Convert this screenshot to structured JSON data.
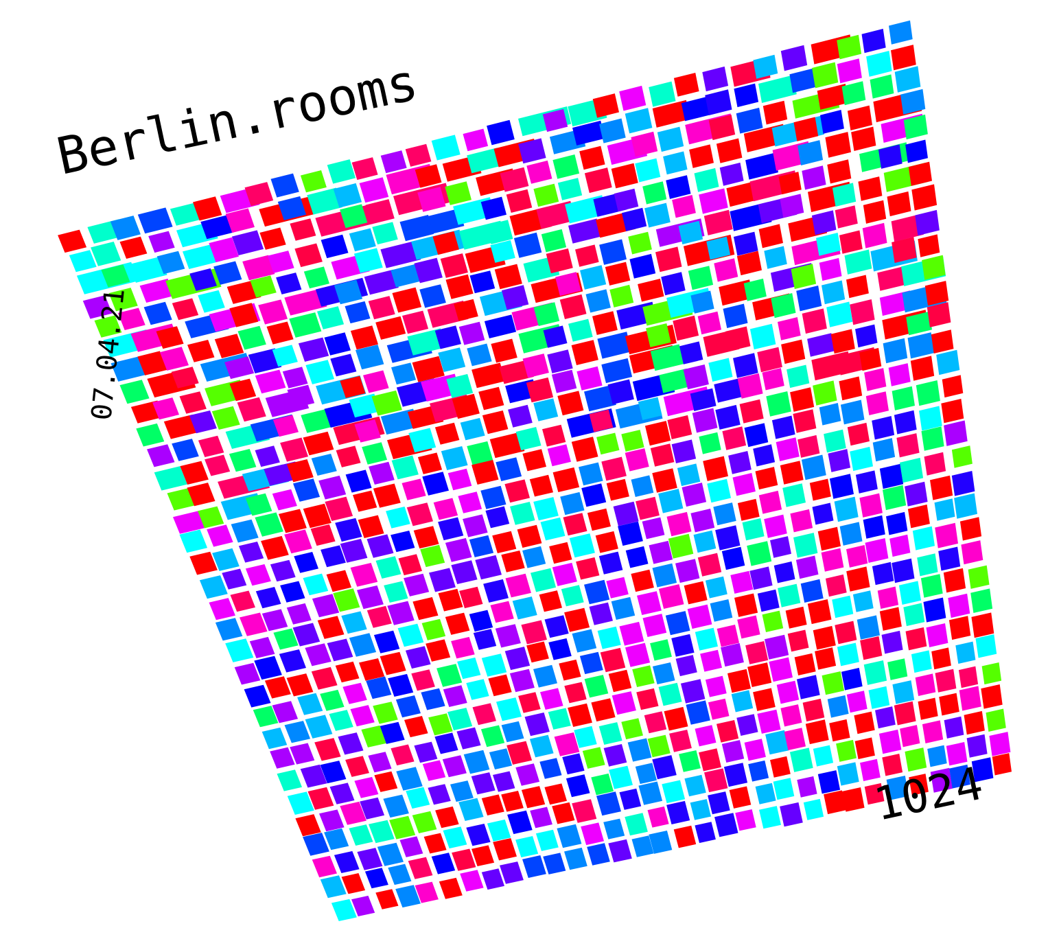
{
  "artwork": {
    "title": "Berlin.rooms",
    "date": "07.04.21",
    "count": "1024",
    "palette": [
      "#ff0000",
      "#ff0066",
      "#ff00cc",
      "#ee00ff",
      "#aa00ff",
      "#6600ff",
      "#2200ff",
      "#0044ff",
      "#0088ff",
      "#00bbff",
      "#00ffff",
      "#00ffcc",
      "#00ff66",
      "#55ff00",
      "#0000ff",
      "#ff0000",
      "#ff0000",
      "#ff0044"
    ],
    "background": "#ffffff"
  }
}
